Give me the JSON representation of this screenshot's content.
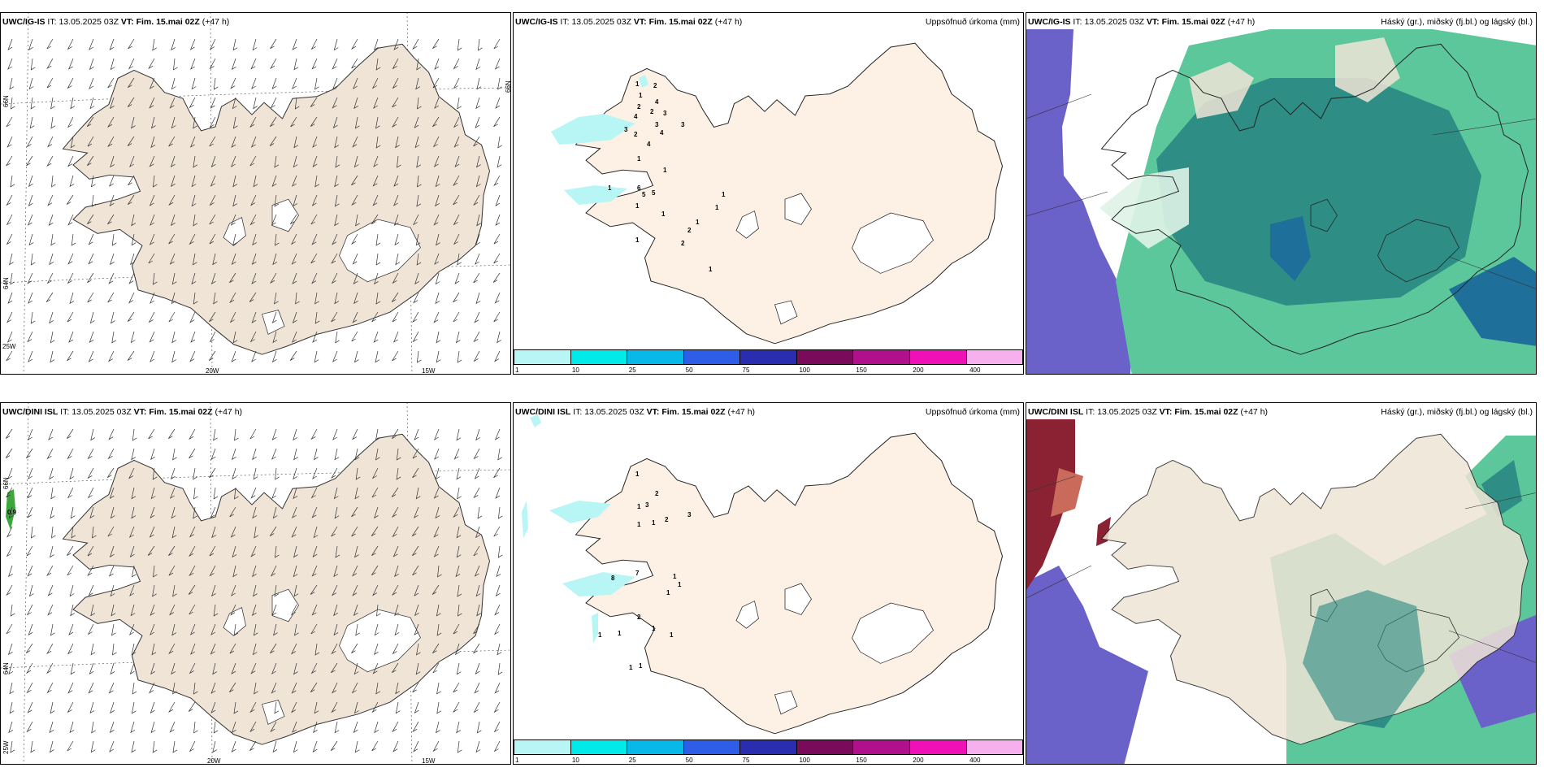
{
  "colors": {
    "land": "#efe4d6",
    "land_precip": "#fdf0e4",
    "sea_cloud": "#6a62c9",
    "cloud_green": "#5cc79b",
    "cloud_dark": "#2e8d84",
    "cloud_blue": "#1e6f9a",
    "cloud_red": "#8a2233"
  },
  "rows": [
    {
      "model": "UWC/IG-IS",
      "it_label": "IT:",
      "it_value": "13.05.2025 03Z",
      "vt_label": "VT:",
      "vt_value": "Fim. 15.mai 02Z",
      "lead": "(+47 h)"
    },
    {
      "model": "UWC/DINI ISL",
      "it_label": "IT:",
      "it_value": "13.05.2025 03Z",
      "vt_label": "VT:",
      "vt_value": "Fim. 15.mai 02Z",
      "lead": "(+47 h)"
    }
  ],
  "wind_axes": {
    "lat_labels": [
      "66N",
      "64N"
    ],
    "lon_labels": [
      "25W",
      "20W",
      "15W"
    ],
    "extra_value": "0.9"
  },
  "precip": {
    "title": "Uppsöfnuð úrkoma (mm)",
    "colorbar": [
      {
        "label": "1",
        "color": "#b8f6f6"
      },
      {
        "label": "10",
        "color": "#00eaea"
      },
      {
        "label": "25",
        "color": "#08b8e8"
      },
      {
        "label": "50",
        "color": "#2e5ee8"
      },
      {
        "label": "75",
        "color": "#2a2db0"
      },
      {
        "label": "100",
        "color": "#7a0a5a"
      },
      {
        "label": "150",
        "color": "#b0108c"
      },
      {
        "label": "200",
        "color": "#f010b8"
      },
      {
        "label": "400",
        "color": "#f7b0ee"
      }
    ],
    "labels_top": [
      "1",
      "2",
      "1",
      "2",
      "4",
      "2",
      "3",
      "4",
      "3",
      "2",
      "3",
      "4",
      "3",
      "4",
      "1",
      "1",
      "1",
      "6",
      "5",
      "5",
      "1",
      "1",
      "1",
      "2",
      "2",
      "1",
      "1",
      "1",
      "1"
    ],
    "labels_bottom": [
      "1",
      "2",
      "1",
      "3",
      "3",
      "2",
      "1",
      "1",
      "8",
      "7",
      "1",
      "1",
      "1",
      "2",
      "1",
      "1",
      "1",
      "1",
      "1",
      "1"
    ]
  },
  "cloud": {
    "title": "Háský (gr.), miðský (fj.bl.) og lágský (bl.)"
  }
}
